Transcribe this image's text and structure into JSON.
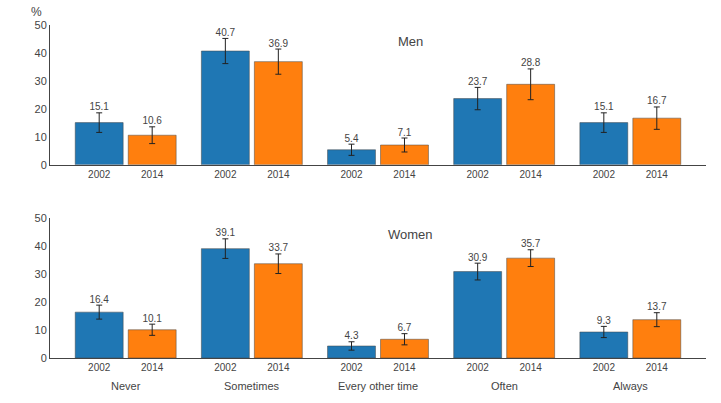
{
  "chart_data": [
    {
      "type": "bar",
      "ylabel": "%",
      "annotations": [
        "Men"
      ],
      "categories": [
        null,
        null,
        null,
        null,
        null
      ],
      "series": [
        {
          "name": "2002",
          "color": "#1f77b4",
          "values": [
            15.1,
            40.7,
            5.4,
            23.7,
            15.1
          ],
          "errors": [
            3.5,
            4.5,
            2.0,
            4.0,
            3.5
          ]
        },
        {
          "name": "2014",
          "color": "#ff7f0e",
          "values": [
            10.6,
            36.9,
            7.1,
            28.8,
            16.7
          ],
          "errors": [
            3.0,
            4.5,
            2.5,
            5.5,
            4.0
          ]
        }
      ],
      "ylim": [
        0,
        50
      ],
      "yticks": [
        0,
        10,
        20,
        30,
        40,
        50
      ],
      "grid": false,
      "data_labels": true
    },
    {
      "type": "bar",
      "annotations": [
        "Women"
      ],
      "categories": [
        "Never",
        "Sometimes",
        "Every other time",
        "Often",
        "Always"
      ],
      "series": [
        {
          "name": "2002",
          "color": "#1f77b4",
          "values": [
            16.4,
            39.1,
            4.3,
            30.9,
            9.3
          ],
          "errors": [
            2.5,
            3.5,
            1.5,
            3.0,
            2.0
          ]
        },
        {
          "name": "2014",
          "color": "#ff7f0e",
          "values": [
            10.1,
            33.7,
            6.7,
            35.7,
            13.7
          ],
          "errors": [
            2.0,
            3.5,
            2.0,
            3.0,
            2.5
          ]
        }
      ],
      "ylim": [
        0,
        50
      ],
      "yticks": [
        0,
        10,
        20,
        30,
        40,
        50
      ],
      "grid": false,
      "data_labels": true
    }
  ]
}
